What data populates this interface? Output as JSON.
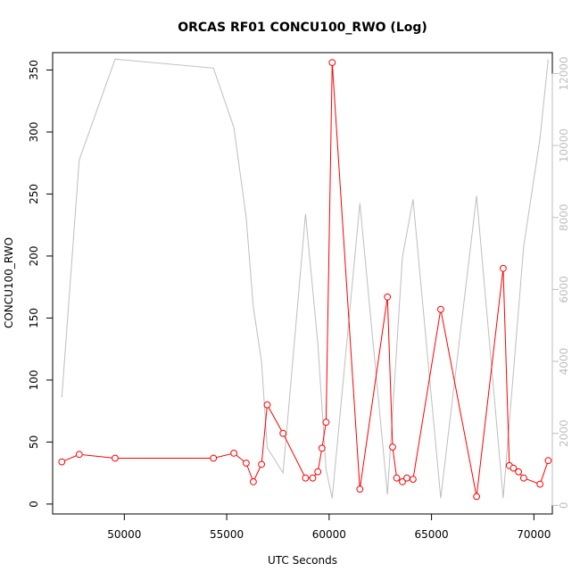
{
  "chart_data": {
    "type": "line",
    "title": "ORCAS RF01 CONCU100_RWO (Log)",
    "xlabel": "UTC Seconds",
    "ylabel": "CONCU100_RWO",
    "xlim": [
      46500,
      70900
    ],
    "ylim": [
      -8,
      364
    ],
    "y2lim": [
      -240,
      12580
    ],
    "x_ticks": [
      50000,
      55000,
      60000,
      65000,
      70000
    ],
    "y_ticks": [
      0,
      50,
      100,
      150,
      200,
      250,
      300,
      350
    ],
    "y2_ticks": [
      0,
      2000,
      4000,
      6000,
      8000,
      10000,
      12000
    ],
    "grid": false,
    "series": [
      {
        "axis": "left",
        "color": "#ff0000",
        "marker": "open-circle",
        "x": [
          46950,
          47800,
          49550,
          54350,
          55350,
          55950,
          56300,
          56700,
          56980,
          57750,
          58850,
          59200,
          59450,
          59650,
          59850,
          60150,
          61500,
          62850,
          63100,
          63300,
          63580,
          63800,
          64100,
          65450,
          67200,
          68500,
          68800,
          69000,
          69250,
          69500,
          70300,
          70700
        ],
        "y": [
          34,
          40,
          37,
          37,
          41,
          33,
          18,
          32,
          80,
          57,
          21,
          21,
          26,
          45,
          66,
          356,
          12,
          167,
          46,
          21,
          18,
          21,
          20,
          157,
          6,
          190,
          31,
          29,
          26,
          21,
          16,
          35
        ]
      },
      {
        "axis": "right",
        "color": "#bebebe",
        "marker": "none",
        "x": [
          46950,
          47800,
          49550,
          54350,
          55350,
          55950,
          56300,
          56700,
          56980,
          57750,
          58850,
          59450,
          59850,
          60150,
          61500,
          62850,
          63580,
          64100,
          65450,
          67200,
          68500,
          69500,
          70300,
          70700
        ],
        "y": [
          3000,
          9600,
          12400,
          12150,
          10500,
          8000,
          5500,
          4000,
          1600,
          900,
          8100,
          4500,
          1000,
          200,
          8400,
          300,
          6900,
          8500,
          200,
          8600,
          200,
          7200,
          10200,
          12400
        ]
      }
    ]
  }
}
